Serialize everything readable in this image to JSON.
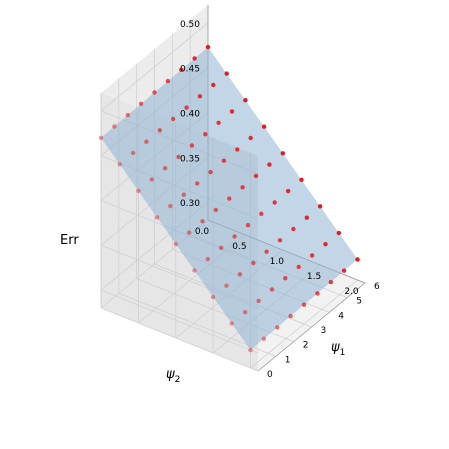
{
  "chart_data": {
    "type": "scatter3d",
    "zlabel": "Err",
    "xlabel_psi2": "ψ",
    "xlabel_psi2_sub": "2",
    "ylabel_psi1": "ψ",
    "ylabel_psi1_sub": "1",
    "psi2_ticks": [
      "0.0",
      "0.5",
      "1.0",
      "1.5",
      "2.0"
    ],
    "psi1_ticks": [
      "0",
      "1",
      "2",
      "3",
      "4",
      "5",
      "6"
    ],
    "err_ticks": [
      "0.30",
      "0.35",
      "0.40",
      "0.45",
      "0.50"
    ],
    "psi2_range": [
      0,
      2.1
    ],
    "psi1_range": [
      0,
      6
    ],
    "err_range": [
      0.28,
      0.52
    ],
    "grid": true,
    "surface_color": "#8fb4d6",
    "point_color": "#e41a1c",
    "surface_description": "Err decreases linearly with psi2 from about 0.47 at psi2=0 to about 0.30 at psi2=2.0; nearly flat along psi1",
    "surface_model": {
      "err_at_psi2_0": 0.47,
      "err_slope_psi2": -0.085,
      "err_slope_psi1": 0.0005
    },
    "psi2_samples": [
      0.0,
      0.25,
      0.5,
      0.75,
      1.0,
      1.25,
      1.5,
      1.75,
      2.0
    ],
    "psi1_samples": [
      0.0,
      0.75,
      1.5,
      2.25,
      3.0,
      3.75,
      4.5,
      5.25,
      6.0
    ]
  }
}
